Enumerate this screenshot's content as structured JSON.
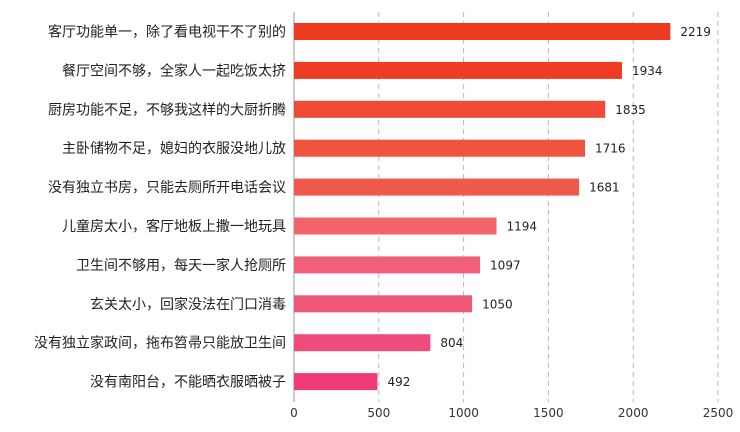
{
  "chart_data": {
    "type": "bar",
    "orientation": "horizontal",
    "categories": [
      "客厅功能单一，除了看电视干不了别的",
      "餐厅空间不够，全家人一起吃饭太挤",
      "厨房功能不足，不够我这样的大厨折腾",
      "主卧储物不足，媳妇的衣服没地儿放",
      "没有独立书房，只能去厕所开电话会议",
      "儿童房太小，客厅地板上撒一地玩具",
      "卫生间不够用，每天一家人抢厕所",
      "玄关太小，回家没法在门口消毒",
      "没有独立家政间，拖布笤帚只能放卫生间",
      "没有南阳台，不能晒衣服晒被子"
    ],
    "values": [
      2219,
      1934,
      1835,
      1716,
      1681,
      1194,
      1097,
      1050,
      804,
      492
    ],
    "value_labels": [
      "2219",
      "1934",
      "1835",
      "1716",
      "1681",
      "1194",
      "1097",
      "1050",
      "804",
      "492"
    ],
    "xlim": [
      0,
      2500
    ],
    "xticks": [
      0,
      500,
      1000,
      1500,
      2000,
      2500
    ],
    "xtick_labels": [
      "0",
      "500",
      "1000",
      "1500",
      "2000",
      "2500"
    ],
    "grid": "vertical-dashed",
    "legend": "none",
    "colors": [
      "#ec3a20",
      "#ed3e25",
      "#ee4a35",
      "#ef543f",
      "#f05a4d",
      "#f2646a",
      "#f15f78",
      "#f0587a",
      "#f04c7b",
      "#ef3c79"
    ],
    "title": "",
    "xlabel": "",
    "ylabel": ""
  }
}
